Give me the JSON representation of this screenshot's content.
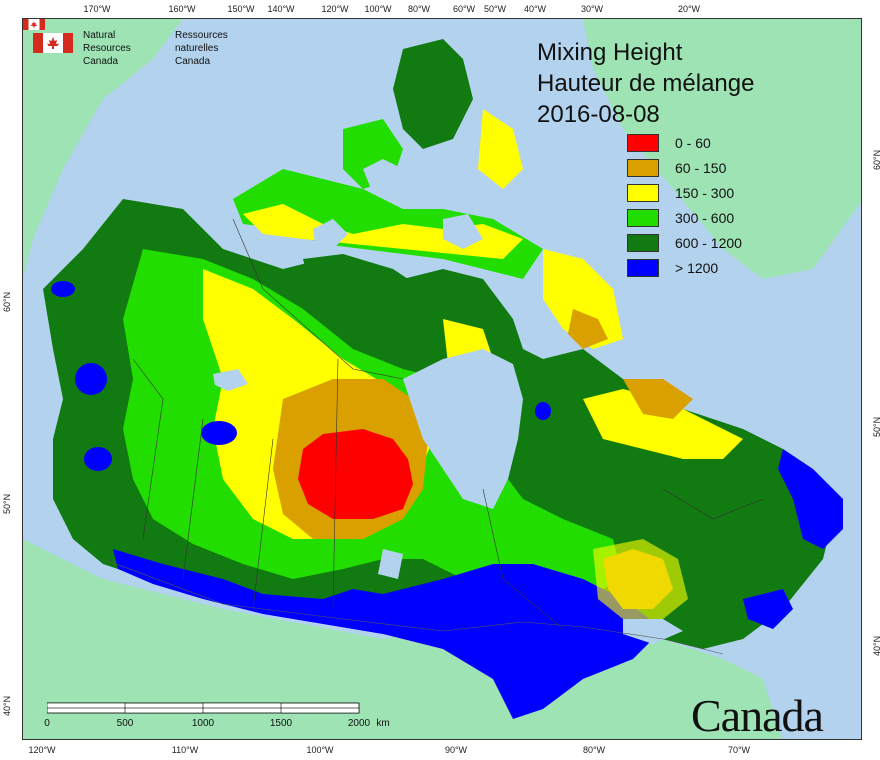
{
  "agency": {
    "english": [
      "Natural Resources",
      "Canada"
    ],
    "french": [
      "Ressources naturelles",
      "Canada"
    ],
    "flag_color": "#d52b1e"
  },
  "title": {
    "english": "Mixing Height",
    "french": "Hauteur de mélange",
    "date": "2016-08-08"
  },
  "legend": [
    {
      "label": "0 - 60",
      "color": "#ff0000"
    },
    {
      "label": "60 - 150",
      "color": "#d9a000"
    },
    {
      "label": "150 - 300",
      "color": "#ffff00"
    },
    {
      "label": "300 - 600",
      "color": "#22dd00"
    },
    {
      "label": "600 - 1200",
      "color": "#117a11"
    },
    {
      "label": "> 1200",
      "color": "#0000ff"
    }
  ],
  "graticule": {
    "top": [
      "170°W",
      "160°W",
      "150°W",
      "140°W",
      "120°W",
      "100°W",
      "80°W",
      "60°W",
      "50°W",
      "40°W",
      "30°W",
      "20°W"
    ],
    "bottom": [
      "120°W",
      "110°W",
      "100°W",
      "90°W",
      "80°W",
      "70°W"
    ],
    "left": [
      "60°N",
      "50°N",
      "40°N"
    ],
    "right": [
      "60°N",
      "50°N",
      "40°N"
    ]
  },
  "scale": {
    "labels": [
      "0",
      "500",
      "1000",
      "1500",
      "2000"
    ],
    "unit": "km"
  },
  "wordmark": "Canada",
  "colors": {
    "ocean": "#b3d2ee",
    "land_outside": "#9ee3b4",
    "lake": "#b3d2ee"
  }
}
